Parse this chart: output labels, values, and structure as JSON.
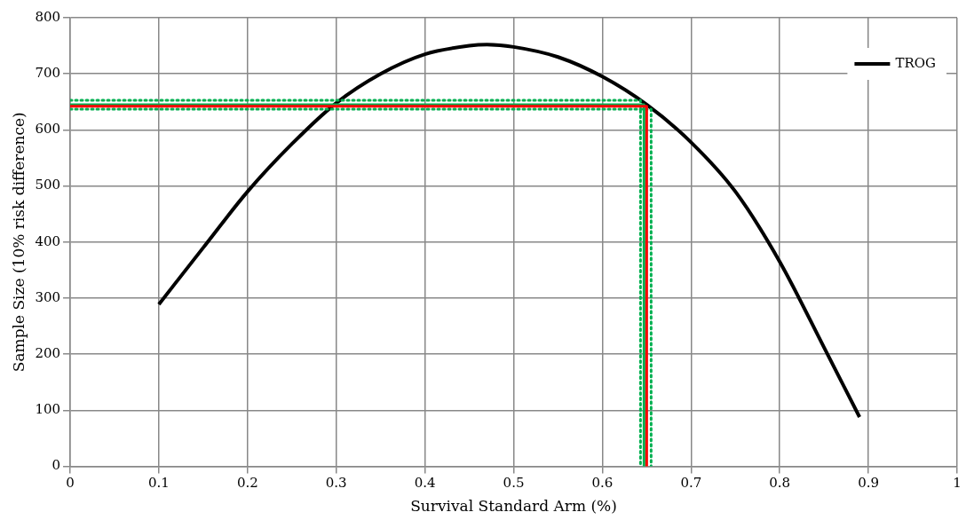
{
  "chart_data": {
    "type": "line",
    "xlabel": "Survival Standard Arm (%)",
    "ylabel": "Sample Size (10% risk difference)",
    "xlim": [
      0,
      1
    ],
    "xticks": [
      0,
      0.1,
      0.2,
      0.3,
      0.4,
      0.5,
      0.6,
      0.7,
      0.8,
      0.9,
      1
    ],
    "ylim": [
      0,
      800
    ],
    "yticks": [
      0,
      100,
      200,
      300,
      400,
      500,
      600,
      700,
      800
    ],
    "grid": true,
    "legend": "top right",
    "marker": "none",
    "series": [
      {
        "name": "TROG",
        "color": "#000000",
        "line_style": "solid",
        "x": [
          0.1,
          0.15,
          0.2,
          0.25,
          0.3,
          0.35,
          0.4,
          0.45,
          0.47,
          0.5,
          0.55,
          0.6,
          0.65,
          0.7,
          0.75,
          0.8,
          0.85,
          0.89
        ],
        "values": [
          289,
          390,
          490,
          575,
          648,
          700,
          735,
          750,
          752,
          748,
          730,
          695,
          645,
          578,
          490,
          365,
          212,
          88
        ]
      },
      {
        "color": "#ff0000",
        "line_style": "solid",
        "x": [
          0,
          0.65,
          0.65
        ],
        "values": [
          642,
          642,
          0
        ]
      },
      {
        "color": "#00b050",
        "line_style": "solid",
        "x": [
          0,
          0.647,
          0.647
        ],
        "values": [
          645,
          645,
          0
        ]
      },
      {
        "color": "#00b050",
        "line_style": "dotted",
        "x": [
          0,
          0.643,
          0.643
        ],
        "values": [
          653,
          653,
          0
        ]
      },
      {
        "color": "#00b050",
        "line_style": "dotted",
        "x": [
          0,
          0.655,
          0.655
        ],
        "values": [
          637,
          637,
          0
        ]
      }
    ]
  }
}
